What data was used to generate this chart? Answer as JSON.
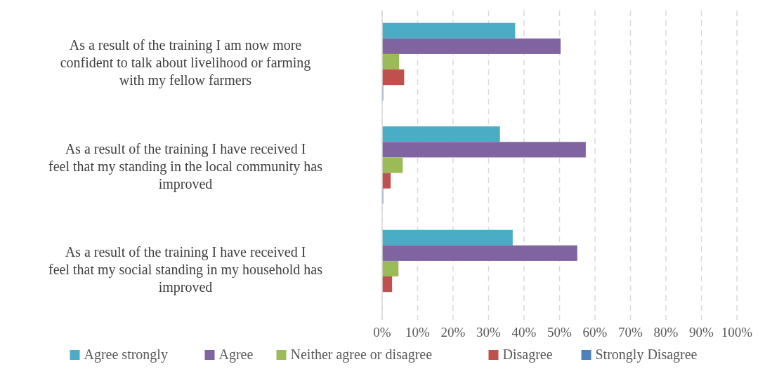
{
  "chart_data": {
    "type": "bar",
    "orientation": "horizontal",
    "categories": [
      "As a result of the training I am now more confident to talk about livelihood or farming with my fellow farmers",
      "As a result of the training I have received I feel that my standing in the local community has improved",
      "As a result of the training I have received I feel that my social standing in my household has improved"
    ],
    "series": [
      {
        "name": "Agree strongly",
        "color": "#4bacc6",
        "values": [
          37.5,
          33.2,
          36.8
        ]
      },
      {
        "name": "Agree",
        "color": "#8064a2",
        "values": [
          50.3,
          57.4,
          55.0
        ]
      },
      {
        "name": "Neither agree or disagree",
        "color": "#9bbb59",
        "values": [
          4.8,
          5.8,
          4.6
        ]
      },
      {
        "name": "Disagree",
        "color": "#c0504d",
        "values": [
          6.2,
          2.4,
          2.8
        ]
      },
      {
        "name": "Strongly Disagree",
        "color": "#4f81bd",
        "values": [
          0.3,
          0.3,
          0
        ]
      }
    ],
    "xlim": [
      0,
      100
    ],
    "xticks": [
      {
        "value": 0,
        "label": "0%"
      },
      {
        "value": 10,
        "label": "10%"
      },
      {
        "value": 20,
        "label": "20%"
      },
      {
        "value": 30,
        "label": "30%"
      },
      {
        "value": 40,
        "label": "40%"
      },
      {
        "value": 50,
        "label": "50%"
      },
      {
        "value": 60,
        "label": "60%"
      },
      {
        "value": 70,
        "label": "70%"
      },
      {
        "value": 80,
        "label": "80%"
      },
      {
        "value": 90,
        "label": "90%"
      },
      {
        "value": 100,
        "label": "100%"
      }
    ],
    "grid": "x",
    "legend": "bottom"
  }
}
